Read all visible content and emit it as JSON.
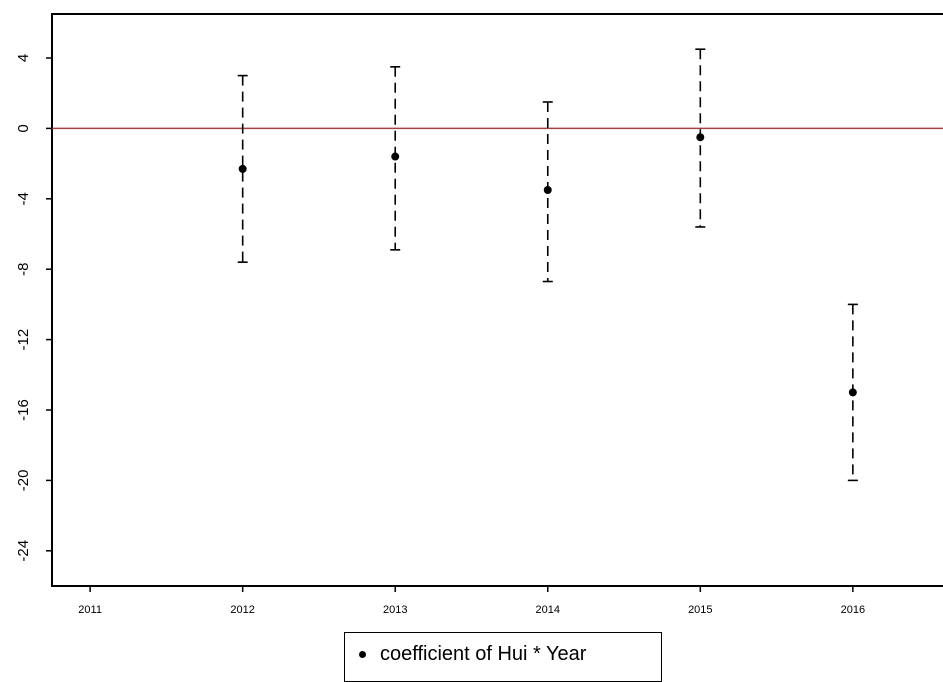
{
  "chart_data": {
    "type": "scatter",
    "title": "",
    "xlabel": "",
    "ylabel": "",
    "x_ticks": [
      "2011",
      "2012",
      "2013",
      "2014",
      "2015",
      "2016"
    ],
    "y_ticks": [
      "4",
      "0",
      "-4",
      "-8",
      "-12",
      "-16",
      "-20",
      "-24"
    ],
    "xlim": [
      2010.75,
      2016.65
    ],
    "ylim": [
      -26,
      6.5
    ],
    "reference_line": {
      "y": 0,
      "color": "#a04040"
    },
    "series": [
      {
        "name": "coefficient of Hui * Year",
        "points": [
          {
            "x": 2012,
            "y": -2.3,
            "lower": -7.6,
            "upper": 3.0
          },
          {
            "x": 2013,
            "y": -1.6,
            "lower": -6.9,
            "upper": 3.5
          },
          {
            "x": 2014,
            "y": -3.5,
            "lower": -8.7,
            "upper": 1.5
          },
          {
            "x": 2015,
            "y": -0.5,
            "lower": -5.6,
            "upper": 4.5
          },
          {
            "x": 2016,
            "y": -15.0,
            "lower": -20.0,
            "upper": -10.0
          }
        ]
      }
    ],
    "legend_position": "bottom-center",
    "grid": false
  }
}
